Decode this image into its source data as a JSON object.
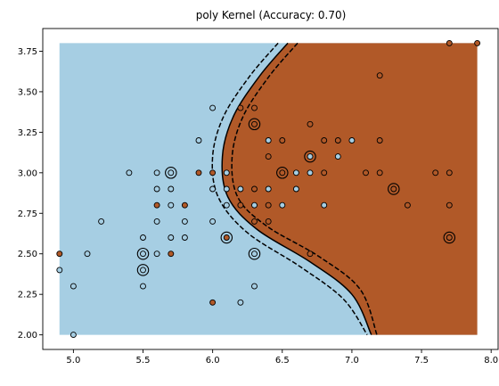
{
  "chart_data": {
    "type": "scatter",
    "title": "poly Kernel (Accuracy: 0.70)",
    "xlabel": "",
    "ylabel": "",
    "xlim": [
      4.78,
      8.05
    ],
    "ylim": [
      1.91,
      3.89
    ],
    "xticks": [
      "5.0",
      "5.5",
      "6.0",
      "6.5",
      "7.0",
      "7.5",
      "8.0"
    ],
    "yticks": [
      "2.00",
      "2.25",
      "2.50",
      "2.75",
      "3.00",
      "3.25",
      "3.50",
      "3.75"
    ],
    "grid": false,
    "region_x": [
      4.9,
      7.9
    ],
    "region_y": [
      2.0,
      3.8
    ],
    "colors": {
      "class_0": "#a6cee3",
      "class_1": "#b15928",
      "edge": "#000000",
      "boundary": "#000000"
    },
    "decision_boundary": [
      [
        6.54,
        3.8
      ],
      [
        6.34,
        3.6
      ],
      [
        6.15,
        3.35
      ],
      [
        6.07,
        3.1
      ],
      [
        6.11,
        2.85
      ],
      [
        6.32,
        2.65
      ],
      [
        6.7,
        2.45
      ],
      [
        7.0,
        2.25
      ],
      [
        7.14,
        2.0
      ]
    ],
    "margin_lower": [
      [
        6.47,
        3.8
      ],
      [
        6.27,
        3.6
      ],
      [
        6.08,
        3.35
      ],
      [
        6.0,
        3.1
      ],
      [
        6.04,
        2.85
      ],
      [
        6.25,
        2.63
      ],
      [
        6.63,
        2.42
      ],
      [
        6.94,
        2.22
      ],
      [
        7.11,
        2.0
      ]
    ],
    "margin_upper": [
      [
        6.61,
        3.8
      ],
      [
        6.41,
        3.6
      ],
      [
        6.22,
        3.35
      ],
      [
        6.14,
        3.1
      ],
      [
        6.18,
        2.85
      ],
      [
        6.39,
        2.67
      ],
      [
        6.77,
        2.48
      ],
      [
        7.06,
        2.28
      ],
      [
        7.18,
        2.0
      ]
    ],
    "points": [
      {
        "x": 4.9,
        "y": 2.5,
        "c": 1
      },
      {
        "x": 4.9,
        "y": 2.4,
        "c": 0
      },
      {
        "x": 5.0,
        "y": 2.3,
        "c": 0
      },
      {
        "x": 5.0,
        "y": 2.0,
        "c": 0
      },
      {
        "x": 5.1,
        "y": 2.5,
        "c": 0
      },
      {
        "x": 5.2,
        "y": 2.7,
        "c": 0
      },
      {
        "x": 5.4,
        "y": 3.0,
        "c": 0
      },
      {
        "x": 5.5,
        "y": 2.6,
        "c": 0
      },
      {
        "x": 5.5,
        "y": 2.5,
        "c": 0
      },
      {
        "x": 5.5,
        "y": 2.4,
        "c": 0
      },
      {
        "x": 5.5,
        "y": 2.3,
        "c": 0
      },
      {
        "x": 5.6,
        "y": 3.0,
        "c": 0
      },
      {
        "x": 5.6,
        "y": 2.9,
        "c": 0
      },
      {
        "x": 5.6,
        "y": 2.8,
        "c": 1
      },
      {
        "x": 5.6,
        "y": 2.7,
        "c": 0
      },
      {
        "x": 5.6,
        "y": 2.5,
        "c": 0
      },
      {
        "x": 5.7,
        "y": 3.0,
        "c": 0
      },
      {
        "x": 5.7,
        "y": 2.9,
        "c": 0
      },
      {
        "x": 5.7,
        "y": 2.8,
        "c": 0
      },
      {
        "x": 5.7,
        "y": 2.6,
        "c": 0
      },
      {
        "x": 5.7,
        "y": 2.5,
        "c": 1
      },
      {
        "x": 5.8,
        "y": 2.8,
        "c": 1
      },
      {
        "x": 5.8,
        "y": 2.7,
        "c": 0
      },
      {
        "x": 5.8,
        "y": 2.6,
        "c": 0
      },
      {
        "x": 5.9,
        "y": 3.2,
        "c": 0
      },
      {
        "x": 5.9,
        "y": 3.0,
        "c": 1
      },
      {
        "x": 6.0,
        "y": 3.4,
        "c": 0
      },
      {
        "x": 6.0,
        "y": 3.0,
        "c": 1
      },
      {
        "x": 6.0,
        "y": 2.9,
        "c": 0
      },
      {
        "x": 6.0,
        "y": 2.7,
        "c": 0
      },
      {
        "x": 6.0,
        "y": 2.2,
        "c": 1
      },
      {
        "x": 6.1,
        "y": 3.0,
        "c": 0
      },
      {
        "x": 6.1,
        "y": 2.9,
        "c": 0
      },
      {
        "x": 6.1,
        "y": 2.8,
        "c": 0
      },
      {
        "x": 6.1,
        "y": 2.6,
        "c": 1
      },
      {
        "x": 6.2,
        "y": 3.4,
        "c": 1
      },
      {
        "x": 6.2,
        "y": 2.9,
        "c": 0
      },
      {
        "x": 6.2,
        "y": 2.8,
        "c": 1
      },
      {
        "x": 6.2,
        "y": 2.2,
        "c": 0
      },
      {
        "x": 6.3,
        "y": 3.4,
        "c": 1
      },
      {
        "x": 6.3,
        "y": 3.3,
        "c": 1
      },
      {
        "x": 6.3,
        "y": 2.9,
        "c": 1
      },
      {
        "x": 6.3,
        "y": 2.8,
        "c": 0
      },
      {
        "x": 6.3,
        "y": 2.7,
        "c": 1
      },
      {
        "x": 6.3,
        "y": 2.5,
        "c": 0
      },
      {
        "x": 6.3,
        "y": 2.3,
        "c": 0
      },
      {
        "x": 6.4,
        "y": 3.2,
        "c": 0
      },
      {
        "x": 6.4,
        "y": 3.1,
        "c": 1
      },
      {
        "x": 6.4,
        "y": 2.9,
        "c": 0
      },
      {
        "x": 6.4,
        "y": 2.8,
        "c": 1
      },
      {
        "x": 6.4,
        "y": 2.7,
        "c": 1
      },
      {
        "x": 6.5,
        "y": 3.2,
        "c": 1
      },
      {
        "x": 6.5,
        "y": 3.0,
        "c": 1
      },
      {
        "x": 6.5,
        "y": 2.8,
        "c": 0
      },
      {
        "x": 6.6,
        "y": 3.0,
        "c": 0
      },
      {
        "x": 6.6,
        "y": 2.9,
        "c": 0
      },
      {
        "x": 6.7,
        "y": 3.3,
        "c": 1
      },
      {
        "x": 6.7,
        "y": 3.1,
        "c": 0
      },
      {
        "x": 6.7,
        "y": 3.0,
        "c": 0
      },
      {
        "x": 6.7,
        "y": 2.5,
        "c": 1
      },
      {
        "x": 6.8,
        "y": 3.2,
        "c": 1
      },
      {
        "x": 6.8,
        "y": 3.0,
        "c": 1
      },
      {
        "x": 6.8,
        "y": 2.8,
        "c": 0
      },
      {
        "x": 6.9,
        "y": 3.2,
        "c": 1
      },
      {
        "x": 6.9,
        "y": 3.1,
        "c": 0
      },
      {
        "x": 7.0,
        "y": 3.2,
        "c": 0
      },
      {
        "x": 7.1,
        "y": 3.0,
        "c": 1
      },
      {
        "x": 7.2,
        "y": 3.6,
        "c": 1
      },
      {
        "x": 7.2,
        "y": 3.2,
        "c": 1
      },
      {
        "x": 7.2,
        "y": 3.0,
        "c": 1
      },
      {
        "x": 7.3,
        "y": 2.9,
        "c": 1
      },
      {
        "x": 7.4,
        "y": 2.8,
        "c": 1
      },
      {
        "x": 7.6,
        "y": 3.0,
        "c": 1
      },
      {
        "x": 7.7,
        "y": 3.8,
        "c": 1
      },
      {
        "x": 7.7,
        "y": 3.0,
        "c": 1
      },
      {
        "x": 7.7,
        "y": 2.8,
        "c": 1
      },
      {
        "x": 7.7,
        "y": 2.6,
        "c": 1
      },
      {
        "x": 7.9,
        "y": 3.8,
        "c": 1
      }
    ],
    "support_vectors": [
      {
        "x": 5.7,
        "y": 3.0
      },
      {
        "x": 5.5,
        "y": 2.5
      },
      {
        "x": 5.5,
        "y": 2.4
      },
      {
        "x": 6.1,
        "y": 2.6
      },
      {
        "x": 6.3,
        "y": 2.5
      },
      {
        "x": 6.3,
        "y": 3.3
      },
      {
        "x": 6.5,
        "y": 3.0
      },
      {
        "x": 6.7,
        "y": 3.1
      },
      {
        "x": 7.3,
        "y": 2.9
      },
      {
        "x": 7.7,
        "y": 2.6
      }
    ]
  }
}
